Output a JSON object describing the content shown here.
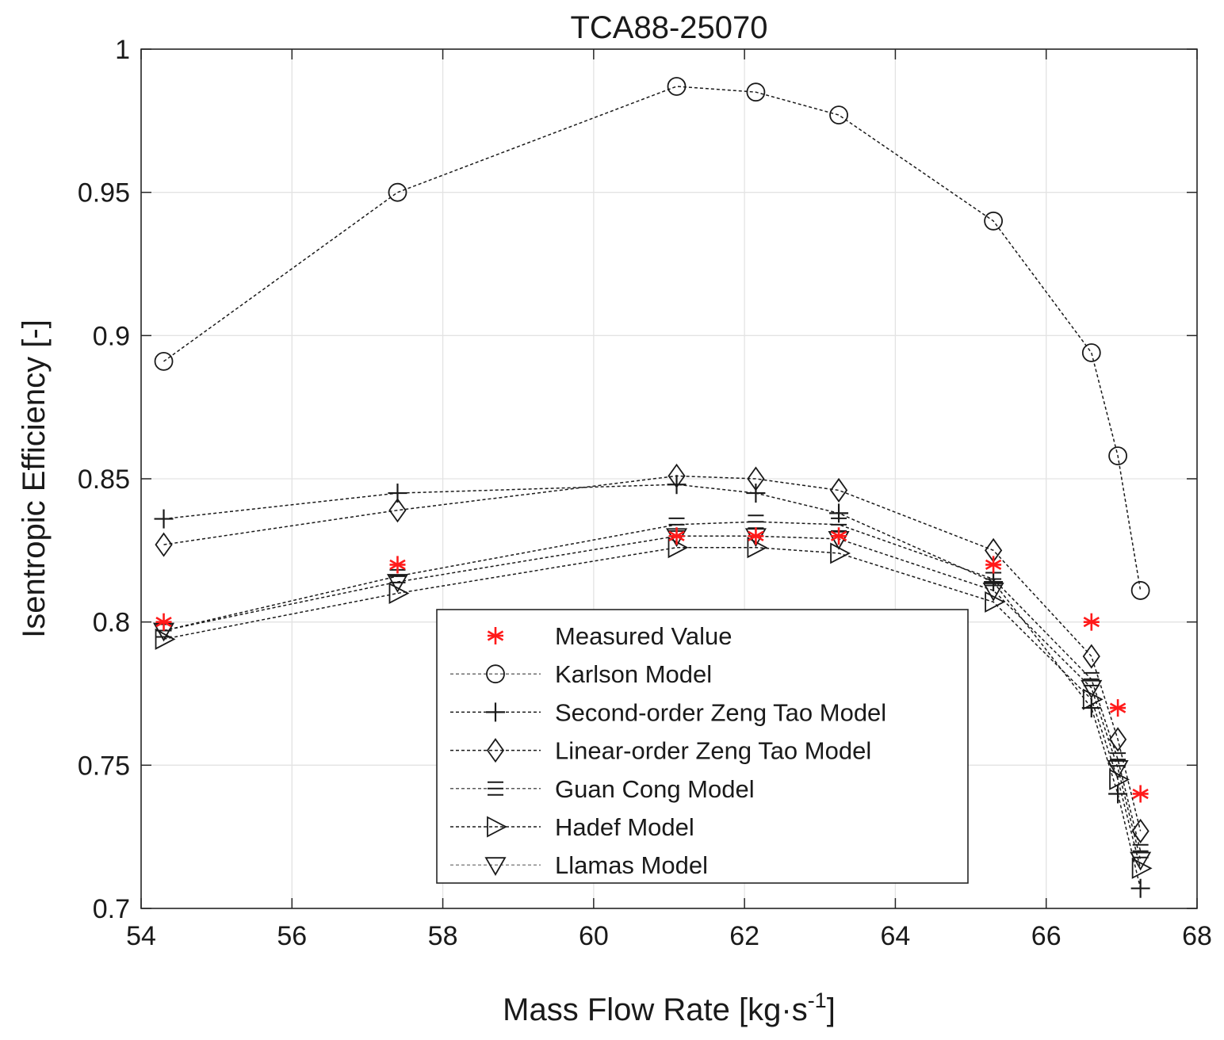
{
  "chart_data": {
    "type": "line",
    "title": "TCA88-25070",
    "xlabel": "Mass Flow Rate [kg·s",
    "xlabel_exponent": "-1",
    "xlabel_close": "]",
    "ylabel": "Isentropic Efficiency [-]",
    "xlim": [
      54,
      68
    ],
    "ylim": [
      0.7,
      1.0
    ],
    "xticks": [
      54,
      56,
      58,
      60,
      62,
      64,
      66,
      68
    ],
    "yticks": [
      0.7,
      0.75,
      0.8,
      0.85,
      0.9,
      0.95,
      1.0
    ],
    "xtick_labels": [
      "54",
      "56",
      "58",
      "60",
      "62",
      "64",
      "66",
      "68"
    ],
    "ytick_labels": [
      "0.7",
      "0.75",
      "0.8",
      "0.85",
      "0.9",
      "0.95",
      "1"
    ],
    "grid": true,
    "legend_location": "bottom-center",
    "x": [
      54.3,
      57.4,
      61.1,
      62.15,
      63.25,
      65.3,
      66.6,
      66.95,
      67.25
    ],
    "series": [
      {
        "name": "Measured Value",
        "marker": "asterisk",
        "color": "#ff1a1a",
        "line": false,
        "values": [
          0.8,
          0.82,
          0.83,
          0.83,
          0.83,
          0.82,
          0.8,
          0.77,
          0.74
        ]
      },
      {
        "name": "Karlson Model",
        "marker": "circle",
        "color": "#1a1a1a",
        "line": true,
        "values": [
          0.891,
          0.95,
          0.987,
          0.985,
          0.977,
          0.94,
          0.894,
          0.858,
          0.811
        ]
      },
      {
        "name": "Second-order Zeng Tao Model",
        "marker": "plus",
        "color": "#1a1a1a",
        "line": true,
        "values": [
          0.836,
          0.845,
          0.848,
          0.845,
          0.838,
          0.814,
          0.77,
          0.74,
          0.707
        ]
      },
      {
        "name": "Linear-order Zeng Tao Model",
        "marker": "diamond",
        "color": "#1a1a1a",
        "line": true,
        "values": [
          0.827,
          0.839,
          0.851,
          0.85,
          0.846,
          0.825,
          0.788,
          0.759,
          0.727
        ]
      },
      {
        "name": "Guan Cong Model",
        "marker": "equiv",
        "color": "#1a1a1a",
        "line": true,
        "values": [
          0.797,
          0.816,
          0.834,
          0.835,
          0.834,
          0.815,
          0.78,
          0.752,
          0.72
        ]
      },
      {
        "name": "Hadef Model",
        "marker": "triangle-right",
        "color": "#1a1a1a",
        "line": true,
        "values": [
          0.794,
          0.81,
          0.826,
          0.826,
          0.824,
          0.807,
          0.773,
          0.745,
          0.714
        ]
      },
      {
        "name": "Llamas Model",
        "marker": "triangle-down",
        "color": "#1a1a1a",
        "line": true,
        "values": [
          0.797,
          0.814,
          0.83,
          0.83,
          0.829,
          0.811,
          0.777,
          0.749,
          0.717
        ]
      }
    ]
  }
}
